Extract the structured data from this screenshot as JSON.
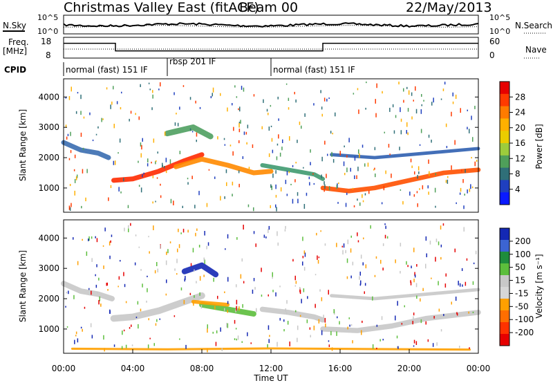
{
  "header": {
    "radar": "Christmas Valley East (fitACF)",
    "beam": "Beam 00",
    "date": "22/May/2013"
  },
  "chart_data": [
    {
      "type": "line",
      "panel": "noise",
      "left_label": "N.Sky",
      "right_label": "N.Search",
      "left_ticks": [
        "10^5",
        "10^0"
      ],
      "right_ticks": [
        "10^5",
        "10^0"
      ]
    },
    {
      "type": "line",
      "panel": "frequency",
      "left_label_lines": [
        "Freq.",
        "[MHz]"
      ],
      "right_label": "Nave",
      "left_ticks": [
        18,
        8
      ],
      "right_ticks": [
        60,
        0
      ],
      "freq_steps": [
        {
          "x": 0,
          "y": 15
        },
        {
          "x": 3.0,
          "y": 10
        },
        {
          "x": 15.0,
          "y": 15
        },
        {
          "x": 24,
          "y": 15
        }
      ]
    },
    {
      "type": "table",
      "panel": "cpid",
      "label": "CPID",
      "segments": [
        {
          "start": 0,
          "end": 6.0,
          "text": "normal (fast) 151 IF"
        },
        {
          "start": 6.0,
          "end": 12.0,
          "text": "rbsp 201 IF"
        },
        {
          "start": 12.0,
          "end": 24,
          "text": "normal (fast) 151 IF"
        }
      ]
    },
    {
      "type": "heatmap",
      "panel": "power",
      "ylabel": "Slant Range [km]",
      "yticks": [
        1000,
        2000,
        3000,
        4000
      ],
      "ylim": [
        200,
        4600
      ],
      "xlim": [
        0,
        24
      ],
      "colorbar_label": "Power [dB]",
      "colorbar_ticks": [
        "28",
        "24",
        "20",
        "16",
        "12",
        "8",
        "4"
      ],
      "colorbar_colors": [
        "#e60000",
        "#ff3a00",
        "#ff7b00",
        "#ffb000",
        "#eacc00",
        "#9ccc3c",
        "#4f9f5a",
        "#2f6f78",
        "#1f3fbf",
        "#0a1aff"
      ],
      "bands": [
        {
          "x": [
            0.0,
            1.0,
            2.0,
            2.6
          ],
          "y": [
            2500,
            2250,
            2150,
            2000
          ],
          "w": 160,
          "color": "#3a6db0"
        },
        {
          "x": [
            2.9,
            4.0,
            5.5,
            7.0,
            8.0
          ],
          "y": [
            1250,
            1300,
            1550,
            1900,
            2100
          ],
          "w": 160,
          "color": "#ff2a00"
        },
        {
          "x": [
            6.5,
            8.0,
            9.5,
            11.0,
            12.0
          ],
          "y": [
            1700,
            1950,
            1750,
            1500,
            1550
          ],
          "w": 160,
          "color": "#ff8a00"
        },
        {
          "x": [
            11.5,
            12.5,
            13.5,
            14.5,
            15.0
          ],
          "y": [
            1750,
            1650,
            1550,
            1450,
            1300
          ],
          "w": 140,
          "color": "#3f9a70"
        },
        {
          "x": [
            15.0,
            16.5,
            18.0,
            20.0,
            22.0,
            24.0
          ],
          "y": [
            1000,
            900,
            1000,
            1250,
            1500,
            1600
          ],
          "w": 150,
          "color": "#ff5000"
        },
        {
          "x": [
            15.5,
            18.0,
            20.0,
            22.0,
            24.0
          ],
          "y": [
            2100,
            2000,
            2100,
            2200,
            2300
          ],
          "w": 110,
          "color": "#2f5fb0"
        },
        {
          "x": [
            6.0,
            7.5,
            8.5
          ],
          "y": [
            2800,
            3000,
            2700
          ],
          "w": 190,
          "color": "#4fa060"
        }
      ]
    },
    {
      "type": "heatmap",
      "panel": "velocity",
      "ylabel": "Slant Range [km]",
      "yticks": [
        1000,
        2000,
        3000,
        4000
      ],
      "ylim": [
        200,
        4600
      ],
      "xlim": [
        0,
        24
      ],
      "xlabel": "Time UT",
      "xticks": [
        "00:00",
        "04:00",
        "08:00",
        "12:00",
        "16:00",
        "20:00",
        "00:00"
      ],
      "colorbar_label": "Velocity [m s⁻¹]",
      "colorbar_ticks": [
        "200",
        "100",
        "50",
        "15",
        "-15",
        "-50",
        "-100",
        "-200"
      ],
      "colorbar_colors": [
        "#1428b4",
        "#3c64d2",
        "#1e8c3c",
        "#5cbe3c",
        "#c8c8c8",
        "#d7d7d7",
        "#ffa000",
        "#ff6e00",
        "#ff3200",
        "#e60000"
      ],
      "bands": [
        {
          "x": [
            0.0,
            1.0,
            2.0,
            2.8
          ],
          "y": [
            2500,
            2250,
            2150,
            2000
          ],
          "w": 180,
          "color": "#c8c8c8"
        },
        {
          "x": [
            2.9,
            4.0,
            5.5,
            7.0,
            8.0
          ],
          "y": [
            1350,
            1400,
            1600,
            1900,
            2100
          ],
          "w": 220,
          "color": "#c8c8c8"
        },
        {
          "x": [
            8.0,
            9.0,
            10.0,
            11.0
          ],
          "y": [
            1800,
            1700,
            1600,
            1500
          ],
          "w": 180,
          "color": "#5cbe3c"
        },
        {
          "x": [
            7.5,
            8.5,
            9.5
          ],
          "y": [
            1900,
            1850,
            1800
          ],
          "w": 120,
          "color": "#ffa000"
        },
        {
          "x": [
            11.5,
            13.0,
            14.5,
            15.0
          ],
          "y": [
            1650,
            1550,
            1400,
            1300
          ],
          "w": 170,
          "color": "#c8c8c8"
        },
        {
          "x": [
            15.0,
            17.0,
            19.0,
            21.0,
            24.0
          ],
          "y": [
            1000,
            950,
            1100,
            1350,
            1550
          ],
          "w": 170,
          "color": "#c8c8c8"
        },
        {
          "x": [
            15.5,
            18.0,
            21.0,
            24.0
          ],
          "y": [
            2100,
            2000,
            2150,
            2300
          ],
          "w": 110,
          "color": "#c8c8c8"
        },
        {
          "x": [
            7.0,
            8.0,
            8.8
          ],
          "y": [
            2900,
            3100,
            2800
          ],
          "w": 190,
          "color": "#1428b4"
        },
        {
          "x": [
            0.5,
            6.0,
            12.0,
            18.0,
            23.5
          ],
          "y": [
            350,
            330,
            360,
            340,
            320
          ],
          "w": 70,
          "color": "#ffa000"
        }
      ]
    }
  ]
}
